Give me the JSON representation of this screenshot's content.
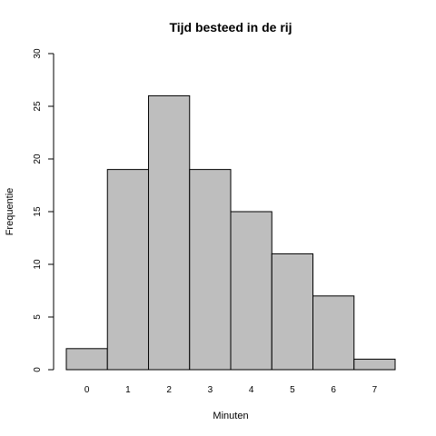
{
  "chart_data": {
    "type": "bar",
    "title": "Tijd besteed in de rij",
    "xlabel": "Minuten",
    "ylabel": "Frequentie",
    "categories": [
      "0",
      "1",
      "2",
      "3",
      "4",
      "5",
      "6",
      "7"
    ],
    "values": [
      2,
      19,
      26,
      19,
      15,
      11,
      7,
      1
    ],
    "ylim": [
      0,
      30
    ],
    "yticks": [
      0,
      5,
      10,
      15,
      20,
      25,
      30
    ],
    "grid": false,
    "colors": {
      "bar_fill": "#bebebe",
      "bar_stroke": "#000000"
    }
  }
}
